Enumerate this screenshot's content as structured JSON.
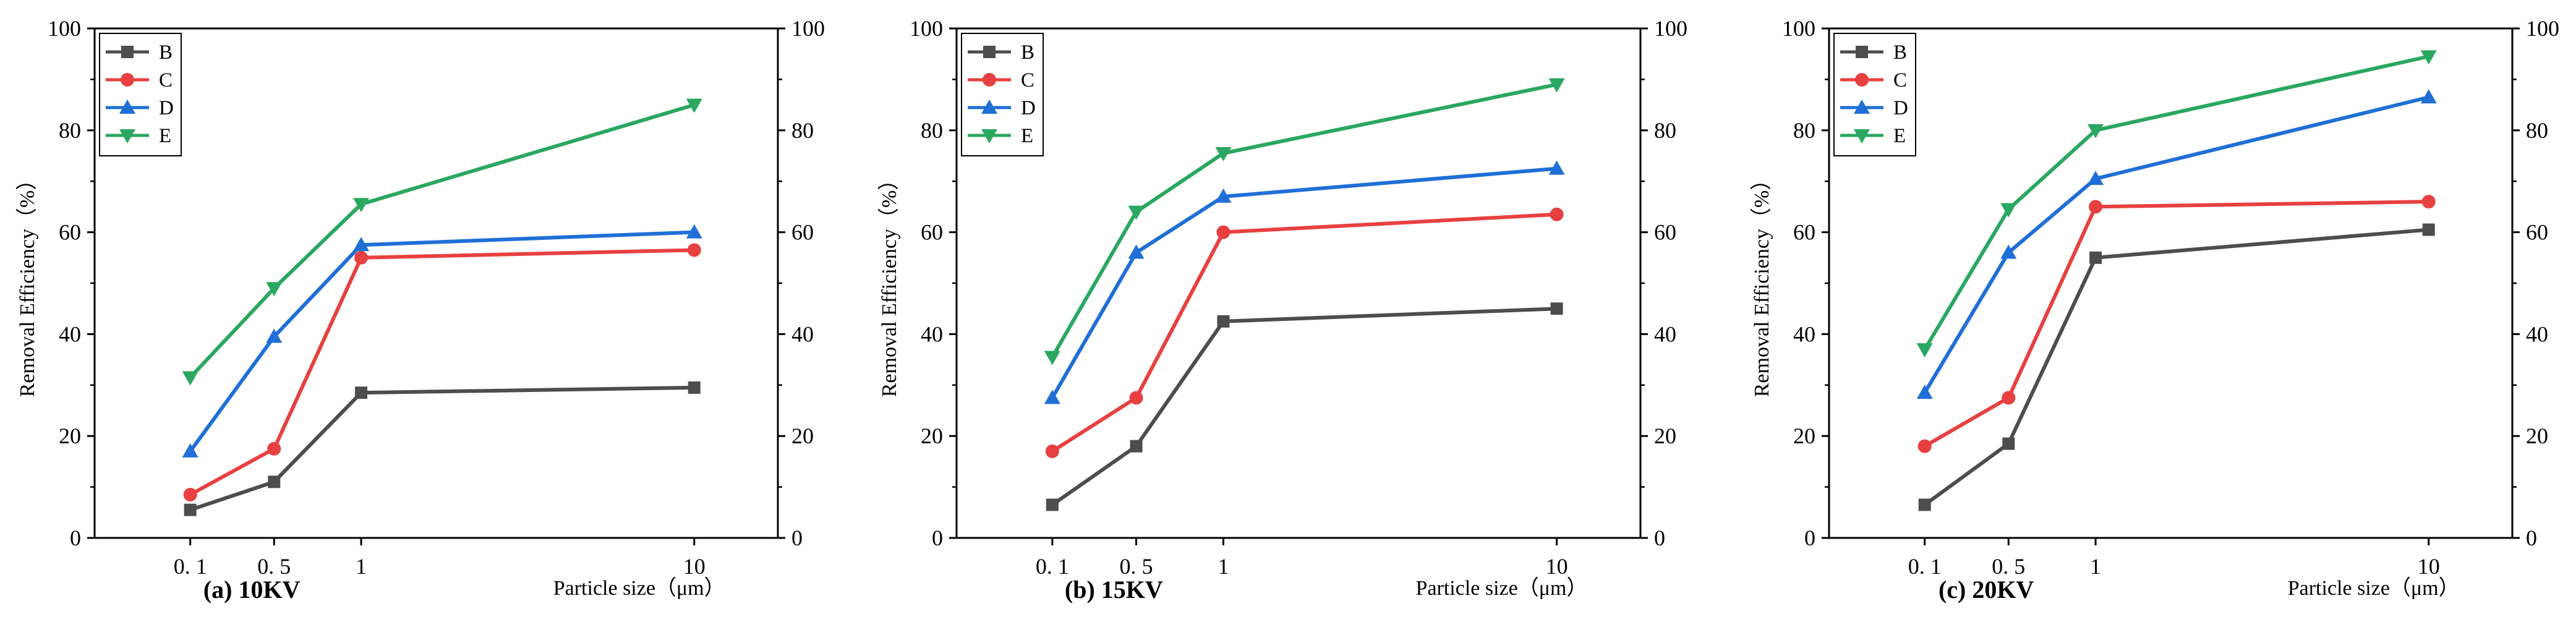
{
  "chart_data": [
    {
      "type": "line",
      "caption": "(a) 10KV",
      "xlabel": "Particle size（μm）",
      "ylabel": "Removal  Efficiency（%）",
      "x_scale": "log",
      "x": [
        0.1,
        0.5,
        1,
        10
      ],
      "x_tick_labels": [
        "0. 1",
        "0. 5",
        "1",
        "10"
      ],
      "ylim": [
        0,
        100
      ],
      "y_ticks": [
        0,
        20,
        40,
        60,
        80,
        100
      ],
      "legend_position": "top-left",
      "series": [
        {
          "name": "B",
          "color": "#4d4d4d",
          "marker": "square",
          "values": [
            5.5,
            11,
            28.5,
            29.5
          ]
        },
        {
          "name": "C",
          "color": "#e84040",
          "marker": "circle",
          "values": [
            8.5,
            17.5,
            55,
            56.5
          ]
        },
        {
          "name": "D",
          "color": "#1f6fd6",
          "marker": "triangle-up",
          "values": [
            17,
            39.5,
            57.5,
            60
          ]
        },
        {
          "name": "E",
          "color": "#2aa760",
          "marker": "triangle-down",
          "values": [
            31.5,
            49,
            65.5,
            85
          ]
        }
      ]
    },
    {
      "type": "line",
      "caption": "(b) 15KV",
      "xlabel": "Particle size（μm）",
      "ylabel": "Removal  Efficiency（%）",
      "x_scale": "log",
      "x": [
        0.1,
        0.5,
        1,
        10
      ],
      "x_tick_labels": [
        "0. 1",
        "0. 5",
        "1",
        "10"
      ],
      "ylim": [
        0,
        100
      ],
      "y_ticks": [
        0,
        20,
        40,
        60,
        80,
        100
      ],
      "legend_position": "top-left",
      "series": [
        {
          "name": "B",
          "color": "#4d4d4d",
          "marker": "square",
          "values": [
            6.5,
            18,
            42.5,
            45
          ]
        },
        {
          "name": "C",
          "color": "#e84040",
          "marker": "circle",
          "values": [
            17,
            27.5,
            60,
            63.5
          ]
        },
        {
          "name": "D",
          "color": "#1f6fd6",
          "marker": "triangle-up",
          "values": [
            27.5,
            56,
            67,
            72.5
          ]
        },
        {
          "name": "E",
          "color": "#2aa760",
          "marker": "triangle-down",
          "values": [
            35.5,
            64,
            75.5,
            89
          ]
        }
      ]
    },
    {
      "type": "line",
      "caption": "(c) 20KV",
      "xlabel": "Particle size（μm）",
      "ylabel": "Removal  Efficiency（%）",
      "x_scale": "log",
      "x": [
        0.1,
        0.5,
        1,
        10
      ],
      "x_tick_labels": [
        "0. 1",
        "0. 5",
        "1",
        "10"
      ],
      "ylim": [
        0,
        100
      ],
      "y_ticks": [
        0,
        20,
        40,
        60,
        80,
        100
      ],
      "legend_position": "top-left",
      "series": [
        {
          "name": "B",
          "color": "#4d4d4d",
          "marker": "square",
          "values": [
            6.5,
            18.5,
            55,
            60.5
          ]
        },
        {
          "name": "C",
          "color": "#e84040",
          "marker": "circle",
          "values": [
            18,
            27.5,
            65,
            66
          ]
        },
        {
          "name": "D",
          "color": "#1f6fd6",
          "marker": "triangle-up",
          "values": [
            28.5,
            56,
            70.5,
            86.5
          ]
        },
        {
          "name": "E",
          "color": "#2aa760",
          "marker": "triangle-down",
          "values": [
            37,
            64.5,
            80,
            94.5
          ]
        }
      ]
    }
  ]
}
